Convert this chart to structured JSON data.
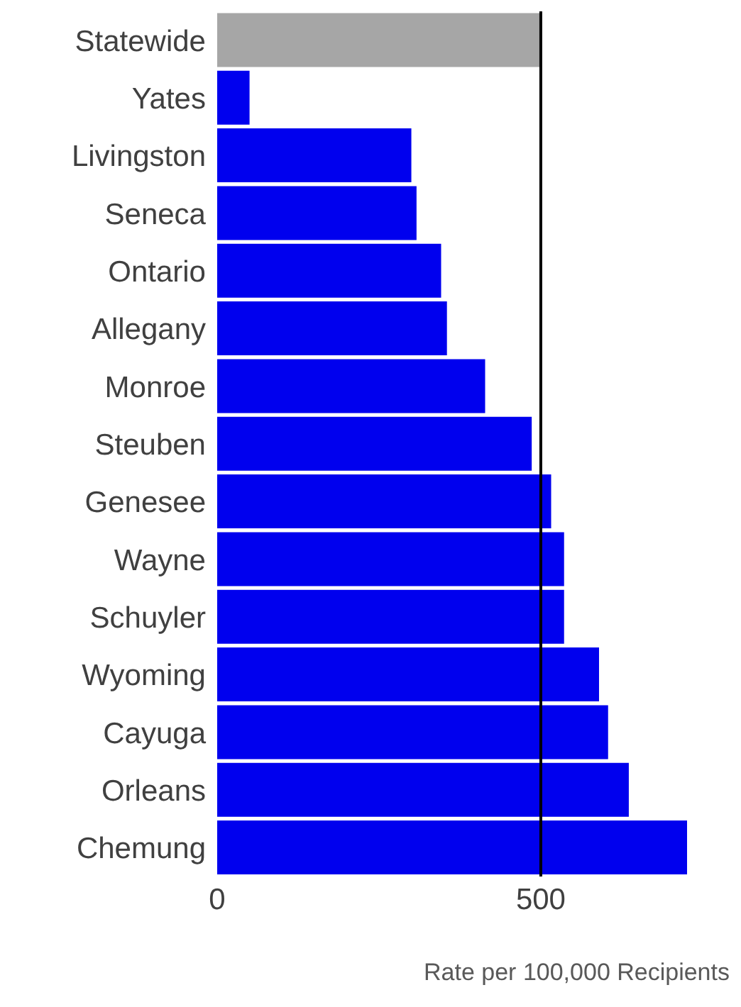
{
  "chart_data": {
    "type": "bar",
    "orientation": "horizontal",
    "xlabel": "Rate per 100,000 Recipients",
    "categories": [
      "Statewide",
      "Yates",
      "Livingston",
      "Seneca",
      "Ontario",
      "Allegany",
      "Monroe",
      "Steuben",
      "Genesee",
      "Wayne",
      "Schuyler",
      "Wyoming",
      "Cayuga",
      "Orleans",
      "Chemung"
    ],
    "values": [
      500,
      50,
      300,
      308,
      346,
      355,
      414,
      486,
      516,
      536,
      536,
      590,
      604,
      636,
      726
    ],
    "colors": [
      "#a6a6a6",
      "#0000ee",
      "#0000ee",
      "#0000ee",
      "#0000ee",
      "#0000ee",
      "#0000ee",
      "#0000ee",
      "#0000ee",
      "#0000ee",
      "#0000ee",
      "#0000ee",
      "#0000ee",
      "#0000ee",
      "#0000ee"
    ],
    "xlim": [
      0,
      726
    ],
    "xticks": [
      0,
      500
    ],
    "ref_lines": [
      {
        "axis": "x",
        "value": 500,
        "color": "#000000"
      }
    ],
    "grid": false,
    "legend": false
  }
}
